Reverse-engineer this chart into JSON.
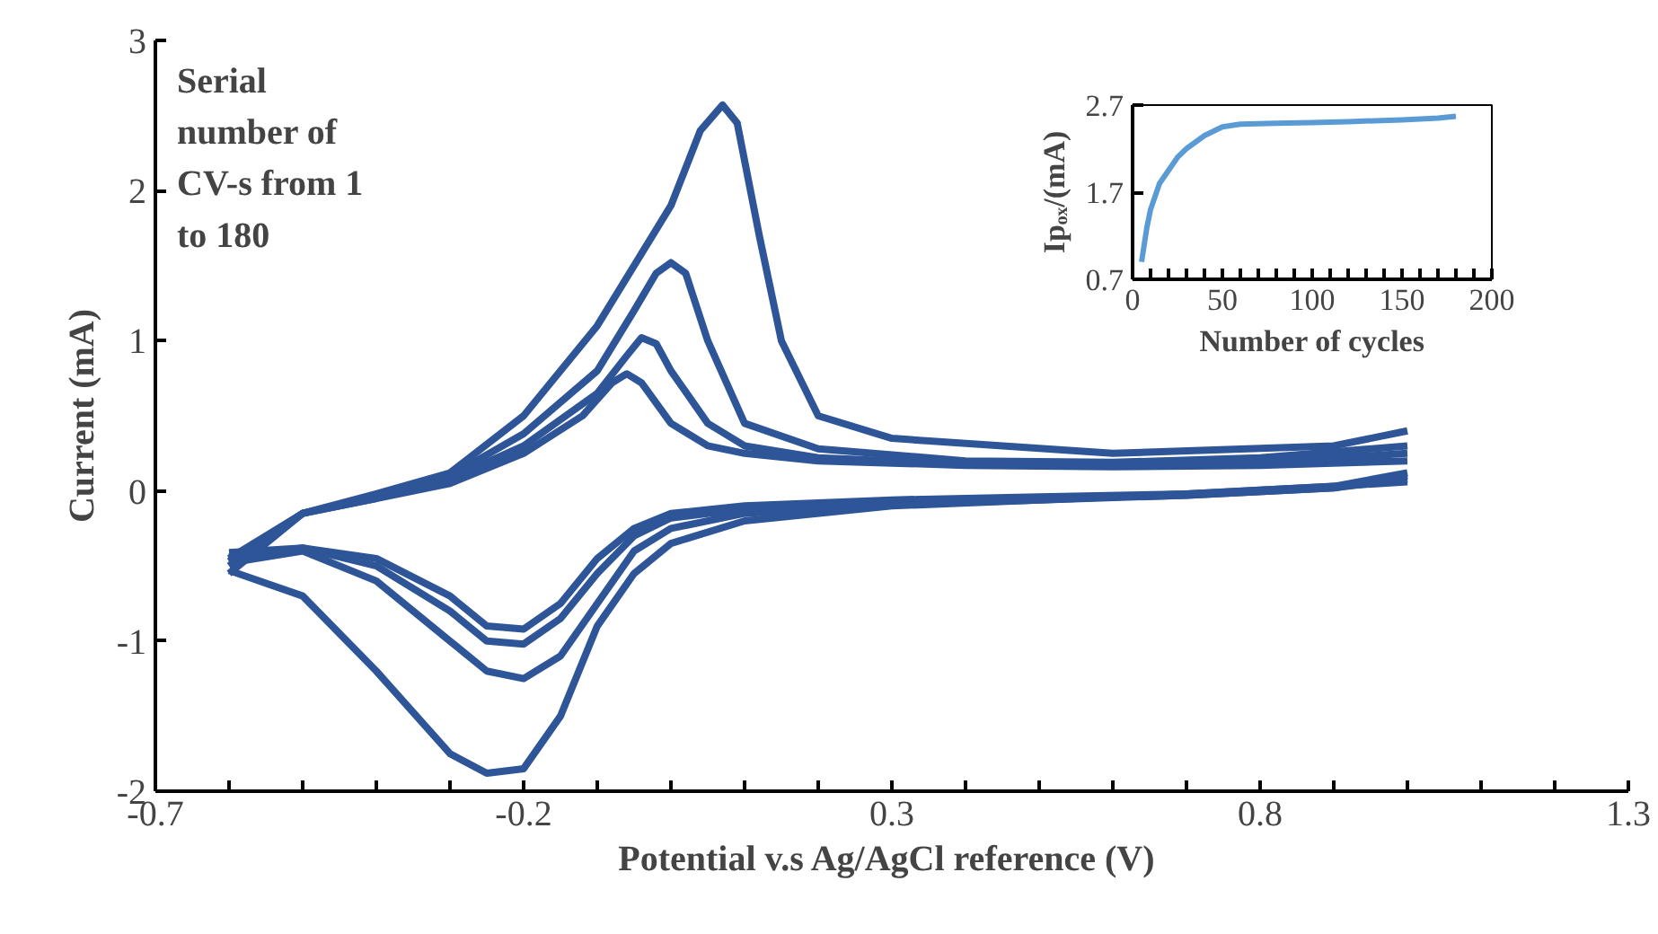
{
  "chart_data": [
    {
      "type": "line",
      "xlabel": "Potential v.s Ag/AgCl reference  (V)",
      "ylabel": "Current (mA)",
      "xlim": [
        -0.7,
        1.3
      ],
      "xticks": [
        -0.7,
        -0.2,
        0.3,
        0.8,
        1.3
      ],
      "ylim": [
        -2,
        3
      ],
      "yticks": [
        -2,
        -1,
        0,
        1,
        2,
        3
      ],
      "grid": false,
      "marker": "none",
      "line_style": "solid",
      "annotations": [
        "Serial number of CV-s from 1 to 180"
      ],
      "series": [
        {
          "color": "#2e5597",
          "x": [
            -0.6,
            -0.5,
            -0.4,
            -0.3,
            -0.2,
            -0.12,
            -0.08,
            -0.06,
            -0.04,
            0.0,
            0.05,
            0.1,
            0.2,
            0.4,
            0.6,
            0.8,
            1.0
          ],
          "values": [
            -0.45,
            -0.15,
            -0.05,
            0.05,
            0.25,
            0.5,
            0.72,
            0.78,
            0.72,
            0.45,
            0.3,
            0.25,
            0.2,
            0.17,
            0.16,
            0.17,
            0.2
          ]
        },
        {
          "color": "#2e5597",
          "x": [
            1.0,
            0.9,
            0.7,
            0.5,
            0.3,
            0.1,
            0.0,
            -0.05,
            -0.1,
            -0.15,
            -0.2,
            -0.25,
            -0.3,
            -0.4,
            -0.5,
            -0.6
          ],
          "values": [
            0.06,
            0.03,
            -0.02,
            -0.04,
            -0.06,
            -0.1,
            -0.15,
            -0.25,
            -0.45,
            -0.75,
            -0.92,
            -0.9,
            -0.7,
            -0.45,
            -0.38,
            -0.41
          ]
        },
        {
          "color": "#2e5597",
          "x": [
            -0.6,
            -0.5,
            -0.4,
            -0.3,
            -0.2,
            -0.1,
            -0.06,
            -0.04,
            -0.02,
            0.0,
            0.05,
            0.1,
            0.2,
            0.4,
            0.6,
            0.8,
            1.0
          ],
          "values": [
            -0.47,
            -0.15,
            -0.05,
            0.08,
            0.3,
            0.65,
            0.9,
            1.02,
            0.98,
            0.8,
            0.45,
            0.3,
            0.22,
            0.18,
            0.17,
            0.19,
            0.25
          ]
        },
        {
          "color": "#2e5597",
          "x": [
            1.0,
            0.9,
            0.7,
            0.5,
            0.3,
            0.1,
            0.0,
            -0.05,
            -0.1,
            -0.15,
            -0.2,
            -0.25,
            -0.3,
            -0.4,
            -0.5,
            -0.6
          ],
          "values": [
            0.08,
            0.02,
            -0.03,
            -0.05,
            -0.07,
            -0.12,
            -0.18,
            -0.3,
            -0.55,
            -0.85,
            -1.02,
            -1.0,
            -0.8,
            -0.5,
            -0.38,
            -0.44
          ]
        },
        {
          "color": "#2e5597",
          "x": [
            -0.6,
            -0.5,
            -0.4,
            -0.3,
            -0.2,
            -0.1,
            -0.05,
            -0.02,
            0.0,
            0.02,
            0.05,
            0.1,
            0.2,
            0.4,
            0.6,
            0.8,
            1.0
          ],
          "values": [
            -0.5,
            -0.15,
            -0.03,
            0.1,
            0.38,
            0.8,
            1.2,
            1.45,
            1.52,
            1.45,
            1.0,
            0.45,
            0.28,
            0.2,
            0.19,
            0.22,
            0.3
          ]
        },
        {
          "color": "#2e5597",
          "x": [
            1.0,
            0.9,
            0.7,
            0.5,
            0.3,
            0.1,
            0.0,
            -0.05,
            -0.1,
            -0.15,
            -0.2,
            -0.25,
            -0.3,
            -0.4,
            -0.5,
            -0.6
          ],
          "values": [
            0.1,
            0.02,
            -0.03,
            -0.06,
            -0.09,
            -0.15,
            -0.25,
            -0.4,
            -0.75,
            -1.1,
            -1.25,
            -1.2,
            -1.0,
            -0.6,
            -0.4,
            -0.48
          ]
        },
        {
          "color": "#2e5597",
          "x": [
            -0.6,
            -0.5,
            -0.4,
            -0.3,
            -0.2,
            -0.1,
            0.0,
            0.04,
            0.07,
            0.09,
            0.12,
            0.15,
            0.2,
            0.3,
            0.6,
            0.9,
            1.0
          ],
          "values": [
            -0.55,
            -0.15,
            -0.02,
            0.12,
            0.5,
            1.1,
            1.9,
            2.4,
            2.57,
            2.45,
            1.7,
            1.0,
            0.5,
            0.35,
            0.25,
            0.3,
            0.4
          ]
        },
        {
          "color": "#2e5597",
          "x": [
            1.0,
            0.9,
            0.7,
            0.5,
            0.3,
            0.1,
            0.0,
            -0.05,
            -0.1,
            -0.15,
            -0.2,
            -0.25,
            -0.3,
            -0.4,
            -0.5,
            -0.6
          ],
          "values": [
            0.12,
            0.03,
            -0.02,
            -0.06,
            -0.1,
            -0.2,
            -0.35,
            -0.55,
            -0.9,
            -1.5,
            -1.85,
            -1.88,
            -1.75,
            -1.2,
            -0.7,
            -0.53
          ]
        }
      ]
    },
    {
      "type": "line",
      "xlabel": "Number of cycles",
      "ylabel": "Ipₒₓ/(mA)",
      "xlim": [
        0,
        200
      ],
      "xticks": [
        0,
        50,
        100,
        150,
        200
      ],
      "ylim": [
        0.7,
        2.7
      ],
      "yticks": [
        0.7,
        1.7,
        2.7
      ],
      "grid": false,
      "marker": "none",
      "line_style": "solid",
      "series": [
        {
          "color": "#5b9bd5",
          "x": [
            5,
            8,
            10,
            15,
            20,
            25,
            30,
            40,
            50,
            60,
            80,
            100,
            120,
            150,
            170,
            180
          ],
          "values": [
            0.9,
            1.3,
            1.5,
            1.8,
            1.95,
            2.1,
            2.2,
            2.35,
            2.45,
            2.48,
            2.49,
            2.5,
            2.51,
            2.53,
            2.55,
            2.57
          ]
        }
      ]
    }
  ]
}
